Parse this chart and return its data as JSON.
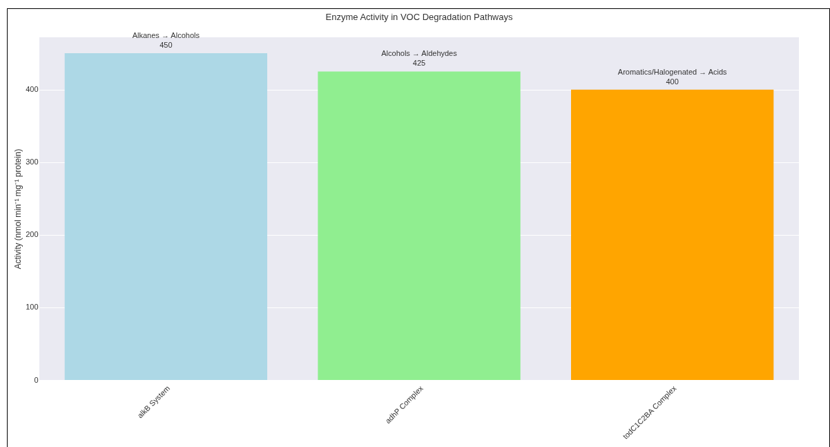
{
  "chart_data": {
    "type": "bar",
    "title": "Enzyme Activity in VOC Degradation Pathways",
    "ylabel": "Activity (nmol min⁻¹ mg⁻¹ protein)",
    "categories": [
      "alkB System",
      "adhP Complex",
      "todC1C2BA Complex"
    ],
    "values": [
      450,
      425,
      400
    ],
    "colors": [
      "#add8e6",
      "#90ee90",
      "#ffa500"
    ],
    "ylim": [
      0,
      472
    ],
    "yticks": [
      0,
      100,
      200,
      300,
      400
    ],
    "grid": true,
    "data_labels": true,
    "annotations": [
      {
        "text": "Alkanes → Alcohols",
        "x": "alkB System",
        "y": 450
      },
      {
        "text": "Alcohols → Aldehydes",
        "x": "adhP Complex",
        "y": 425
      },
      {
        "text": "Aromatics/Halogenated → Acids",
        "x": "todC1C2BA Complex",
        "y": 400
      }
    ]
  }
}
